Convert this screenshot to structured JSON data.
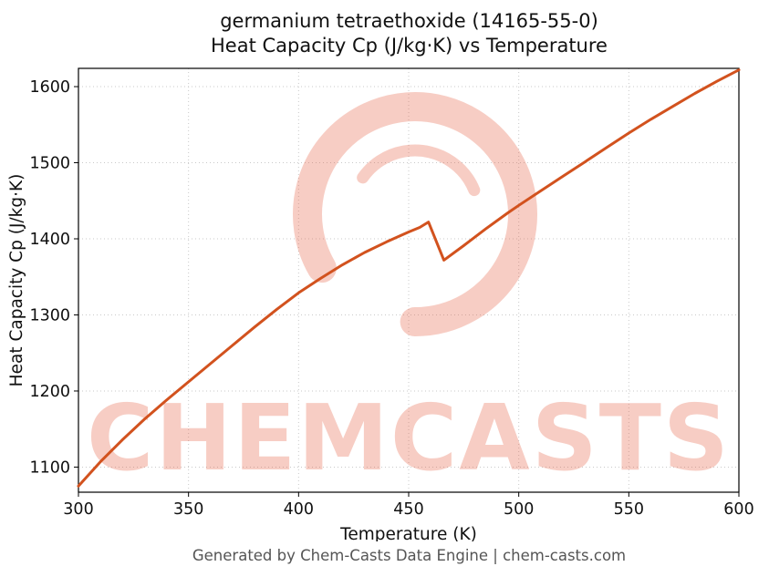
{
  "title": {
    "line1": "germanium tetraethoxide (14165-55-0)",
    "line2": "Heat Capacity Cp (J/kg·K) vs Temperature"
  },
  "footer": "Generated by Chem-Casts Data Engine | chem-casts.com",
  "watermark": {
    "text": "CHEMCASTS",
    "logo": "chemcasts-swirl-logo",
    "color": "#e4593a",
    "opacity": 0.3
  },
  "chart_data": {
    "type": "line",
    "title": "germanium tetraethoxide (14165-55-0) — Heat Capacity Cp (J/kg·K) vs Temperature",
    "xlabel": "Temperature (K)",
    "ylabel": "Heat Capacity Cp (J/kg·K)",
    "xlim": [
      300,
      600
    ],
    "ylim": [
      1067,
      1624
    ],
    "xticks": [
      300,
      350,
      400,
      450,
      500,
      550,
      600
    ],
    "yticks": [
      1100,
      1200,
      1300,
      1400,
      1500,
      1600
    ],
    "grid": true,
    "legend": "none",
    "line_color": "#d2521e",
    "line_width": 3,
    "series": [
      {
        "name": "Heat Capacity Cp",
        "points": [
          [
            300,
            1075
          ],
          [
            310,
            1107
          ],
          [
            320,
            1136
          ],
          [
            330,
            1163
          ],
          [
            340,
            1188
          ],
          [
            350,
            1212
          ],
          [
            360,
            1236
          ],
          [
            370,
            1260
          ],
          [
            380,
            1284
          ],
          [
            390,
            1307
          ],
          [
            400,
            1329
          ],
          [
            410,
            1348
          ],
          [
            420,
            1366
          ],
          [
            430,
            1382
          ],
          [
            440,
            1396
          ],
          [
            450,
            1409
          ],
          [
            455,
            1415
          ],
          [
            459,
            1422
          ],
          [
            466,
            1372
          ],
          [
            475,
            1391
          ],
          [
            485,
            1413
          ],
          [
            495,
            1434
          ],
          [
            500,
            1444
          ],
          [
            510,
            1463
          ],
          [
            520,
            1482
          ],
          [
            530,
            1501
          ],
          [
            540,
            1520
          ],
          [
            550,
            1539
          ],
          [
            560,
            1557
          ],
          [
            570,
            1574
          ],
          [
            580,
            1591
          ],
          [
            590,
            1607
          ],
          [
            600,
            1622
          ]
        ]
      }
    ],
    "discontinuity": {
      "x_start": 459,
      "cp_before": 1422,
      "x_end": 466,
      "cp_after": 1372
    }
  }
}
